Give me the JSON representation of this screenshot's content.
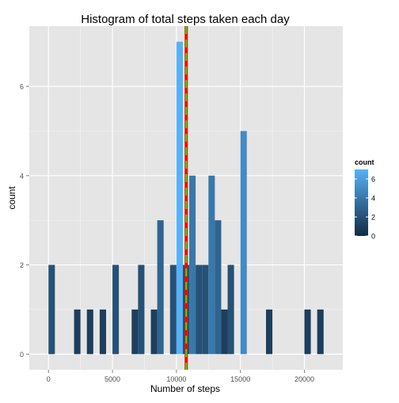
{
  "chart_data": {
    "type": "bar",
    "title": "Histogram of total steps taken each day",
    "xlabel": "Number of steps",
    "ylabel": "count",
    "xlim": [
      -1500,
      23000
    ],
    "ylim": [
      -0.35,
      7.35
    ],
    "x_ticks": [
      0,
      5000,
      10000,
      15000,
      20000
    ],
    "y_ticks": [
      0,
      2,
      4,
      6
    ],
    "x_tick_labels": [
      "0",
      "5000",
      "10000",
      "15000",
      "20000"
    ],
    "y_tick_labels": [
      "0",
      "2",
      "4",
      "6"
    ],
    "binwidth": 500,
    "bins": [
      {
        "x0": 0,
        "x1": 500,
        "count": 2
      },
      {
        "x0": 1000,
        "x1": 1500,
        "count": 0
      },
      {
        "x0": 2000,
        "x1": 2500,
        "count": 1
      },
      {
        "x0": 3000,
        "x1": 3500,
        "count": 1
      },
      {
        "x0": 4000,
        "x1": 4500,
        "count": 1
      },
      {
        "x0": 5000,
        "x1": 5500,
        "count": 2
      },
      {
        "x0": 6500,
        "x1": 7000,
        "count": 1
      },
      {
        "x0": 7000,
        "x1": 7500,
        "count": 2
      },
      {
        "x0": 8000,
        "x1": 8500,
        "count": 1
      },
      {
        "x0": 8500,
        "x1": 9000,
        "count": 3
      },
      {
        "x0": 9500,
        "x1": 10000,
        "count": 2
      },
      {
        "x0": 10000,
        "x1": 10500,
        "count": 7
      },
      {
        "x0": 10500,
        "x1": 11000,
        "count": 2
      },
      {
        "x0": 11000,
        "x1": 11500,
        "count": 4
      },
      {
        "x0": 11500,
        "x1": 12000,
        "count": 2
      },
      {
        "x0": 12000,
        "x1": 12500,
        "count": 2
      },
      {
        "x0": 12500,
        "x1": 13000,
        "count": 4
      },
      {
        "x0": 13000,
        "x1": 13500,
        "count": 3
      },
      {
        "x0": 13500,
        "x1": 14000,
        "count": 1
      },
      {
        "x0": 14000,
        "x1": 14500,
        "count": 2
      },
      {
        "x0": 15000,
        "x1": 15500,
        "count": 5
      },
      {
        "x0": 17000,
        "x1": 17500,
        "count": 1
      },
      {
        "x0": 20000,
        "x1": 20500,
        "count": 1
      },
      {
        "x0": 21000,
        "x1": 21500,
        "count": 1
      }
    ],
    "reference_lines": [
      {
        "name": "mean",
        "x": 10766,
        "color": "#ff0000",
        "style": "solid"
      },
      {
        "name": "median",
        "x": 10765,
        "color": "#00ff00",
        "style": "dashed"
      }
    ],
    "colors": {
      "panel": "#e5e5e5",
      "grid_major": "#ffffff",
      "grid_minor": "#f2f2f2",
      "low": "#132b43",
      "high": "#56b1f7"
    },
    "legend": {
      "title": "count",
      "placement": "right",
      "ticks": [
        0,
        2,
        4,
        6
      ],
      "tick_labels": [
        "0",
        "2",
        "4",
        "6"
      ],
      "range": [
        0,
        7
      ]
    },
    "grid": true
  }
}
